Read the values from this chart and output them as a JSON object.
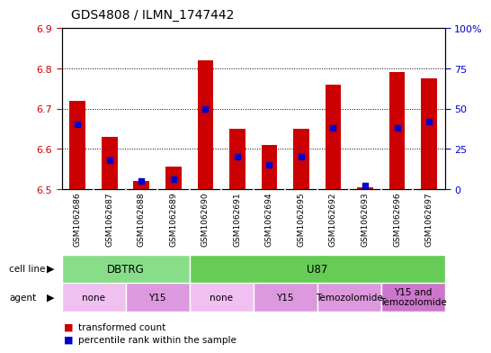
{
  "title": "GDS4808 / ILMN_1747442",
  "samples": [
    "GSM1062686",
    "GSM1062687",
    "GSM1062688",
    "GSM1062689",
    "GSM1062690",
    "GSM1062691",
    "GSM1062694",
    "GSM1062695",
    "GSM1062692",
    "GSM1062693",
    "GSM1062696",
    "GSM1062697"
  ],
  "transformed_count": [
    6.72,
    6.63,
    6.52,
    6.555,
    6.82,
    6.65,
    6.61,
    6.65,
    6.76,
    6.505,
    6.79,
    6.775
  ],
  "percentile_rank": [
    40,
    18,
    5,
    6,
    50,
    20,
    15,
    20,
    38,
    2,
    38,
    42
  ],
  "ylim_left": [
    6.5,
    6.9
  ],
  "ylim_right": [
    0,
    100
  ],
  "yticks_left": [
    6.5,
    6.6,
    6.7,
    6.8,
    6.9
  ],
  "ytick_labels_left": [
    "6.5",
    "6.6",
    "6.7",
    "6.8",
    "6.9"
  ],
  "yticks_right": [
    0,
    25,
    50,
    75,
    100
  ],
  "ytick_labels_right": [
    "0",
    "25",
    "50",
    "75",
    "100%"
  ],
  "bar_color": "#cc0000",
  "dot_color": "#0000cc",
  "bar_bottom": 6.5,
  "cell_line_groups": [
    {
      "label": "DBTRG",
      "start": 0,
      "end": 3,
      "color": "#88dd88"
    },
    {
      "label": "U87",
      "start": 4,
      "end": 11,
      "color": "#66cc55"
    }
  ],
  "agent_groups": [
    {
      "label": "none",
      "start": 0,
      "end": 1,
      "color": "#f0c0f0"
    },
    {
      "label": "Y15",
      "start": 2,
      "end": 3,
      "color": "#dd99dd"
    },
    {
      "label": "none",
      "start": 4,
      "end": 5,
      "color": "#f0c0f0"
    },
    {
      "label": "Y15",
      "start": 6,
      "end": 7,
      "color": "#dd99dd"
    },
    {
      "label": "Temozolomide",
      "start": 8,
      "end": 9,
      "color": "#dd99dd"
    },
    {
      "label": "Y15 and\nTemozolomide",
      "start": 10,
      "end": 11,
      "color": "#cc77cc"
    }
  ],
  "legend_transformed": "transformed count",
  "legend_percentile": "percentile rank within the sample",
  "left_axis_color": "#cc0000",
  "right_axis_color": "#0000cc",
  "background_color": "#ffffff",
  "plot_bg_color": "#ffffff",
  "bar_width": 0.5,
  "label_area_color": "#d8d8d8",
  "chart_border_color": "#000000"
}
